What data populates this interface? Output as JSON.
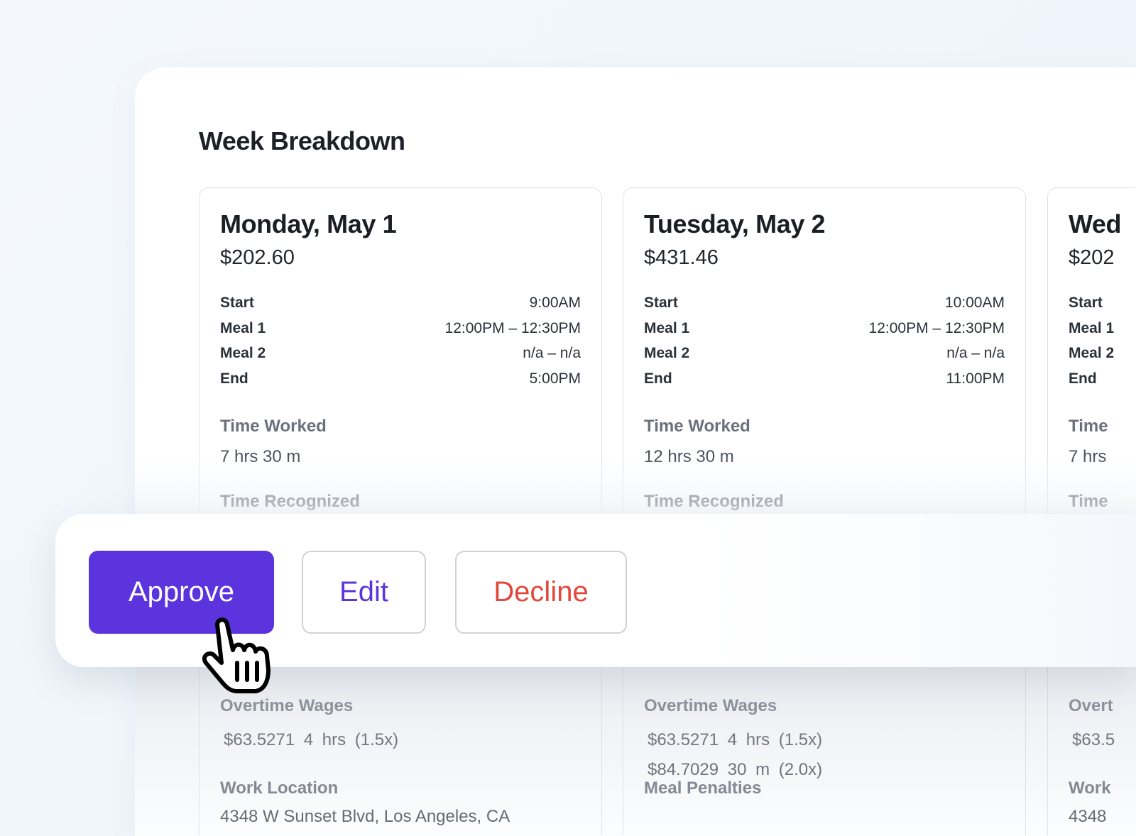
{
  "title": "Week Breakdown",
  "labels": {
    "start": "Start",
    "meal1": "Meal 1",
    "meal2": "Meal 2",
    "end": "End",
    "time_worked": "Time Worked",
    "time_recognized": "Time Recognized",
    "overtime_wages": "Overtime Wages",
    "work_location": "Work Location",
    "meal_penalties": "Meal Penalties"
  },
  "days": [
    {
      "day": "Monday, May 1",
      "price": "$202.60",
      "start": "9:00AM",
      "meal1": "12:00PM – 12:30PM",
      "meal2": "n/a – n/a",
      "end": "5:00PM",
      "time_worked": "7 hrs 30 m",
      "time_recognized_label": "Time Recognized",
      "overtime_label": "Overtime Wages",
      "overtime": [
        "$63.5271  4 hrs  (1.5x)"
      ],
      "next_label": "Work Location",
      "next_value": "4348 W Sunset Blvd, Los Angeles, CA",
      "labels": [
        "Start",
        "Meal 1",
        "Meal 2",
        "End"
      ],
      "tw_label": "Time Worked"
    },
    {
      "day": "Tuesday, May 2",
      "price": "$431.46",
      "start": "10:00AM",
      "meal1": "12:00PM – 12:30PM",
      "meal2": "n/a – n/a",
      "end": "11:00PM",
      "time_worked": "12 hrs 30 m",
      "time_recognized_label": "Time Recognized",
      "overtime_label": "Overtime Wages",
      "overtime": [
        "$63.5271  4 hrs  (1.5x)",
        "$84.7029  30 m  (2.0x)"
      ],
      "next_label": "Meal Penalties",
      "next_value": "",
      "labels": [
        "Start",
        "Meal 1",
        "Meal 2",
        "End"
      ],
      "tw_label": "Time Worked"
    },
    {
      "day": "Wed",
      "price": "$202",
      "start": "",
      "meal1": "",
      "meal2": "",
      "end": "",
      "time_worked": "7 hrs",
      "time_recognized_label": "Time",
      "overtime_label": "Overt",
      "overtime": [
        "$63.5"
      ],
      "next_label": "Work",
      "next_value": "4348",
      "labels": [
        "Start",
        "Meal 1",
        "Meal 2",
        "End"
      ],
      "tw_label": "Time"
    }
  ],
  "actions": {
    "approve": "Approve",
    "edit": "Edit",
    "decline": "Decline"
  },
  "colors": {
    "primary": "#5b34de",
    "danger": "#e4463b"
  },
  "cursor_icon": "pointing-hand-cursor"
}
